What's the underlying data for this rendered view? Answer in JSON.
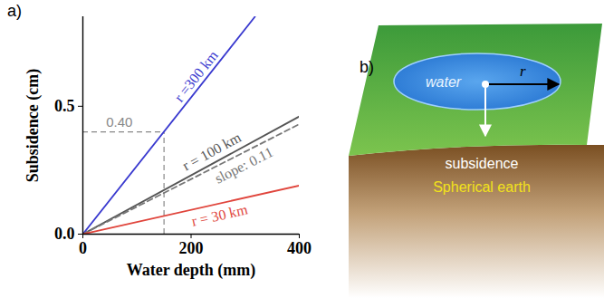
{
  "chart_data": {
    "type": "line",
    "panel_label": "a)",
    "x_label": "Water depth (mm)",
    "y_label": "Subsidence (cm)",
    "xlim": [
      0,
      400
    ],
    "ylim": [
      0,
      0.85
    ],
    "xticks": [
      0,
      200,
      400
    ],
    "yticks": [
      {
        "value": 0,
        "label": "0.0"
      },
      {
        "value": 0.5,
        "label": "0.5"
      }
    ],
    "series": [
      {
        "name": "r =300 km",
        "color": "#3a3acf",
        "line_style": "solid",
        "x": [
          0,
          318
        ],
        "values": [
          0,
          0.85
        ]
      },
      {
        "name": "r = 100 km",
        "color": "#555555",
        "line_style": "solid",
        "x": [
          0,
          400
        ],
        "values": [
          0,
          0.46
        ]
      },
      {
        "name": "slope: 0.11",
        "color": "#777777",
        "line_style": "dashed",
        "x": [
          0,
          400
        ],
        "values": [
          0,
          0.43
        ]
      },
      {
        "name": "r = 30 km",
        "color": "#e0453c",
        "line_style": "solid",
        "x": [
          0,
          400
        ],
        "values": [
          0,
          0.19
        ]
      }
    ],
    "guide": {
      "text": "0.40",
      "x": 150,
      "y": 0.4,
      "color": "#888888",
      "line_style": "dashed"
    }
  },
  "diagram": {
    "panel_label": "b)",
    "water": "water",
    "radius": "r",
    "subsidence": "subsidence",
    "earth": "Spherical earth"
  }
}
